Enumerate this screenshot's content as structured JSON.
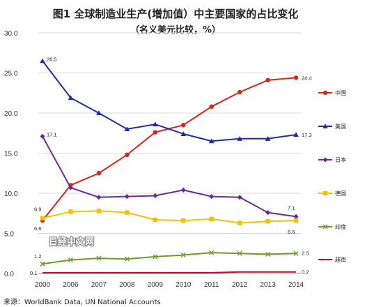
{
  "title": "图1 全球制造业生产(增加值）中主要国家的占比变化",
  "subtitle": "（名义美元比较，%）",
  "source": "来源：WorldBank Data, UN National Accounts",
  "watermark": "日经中文网",
  "chart_data": {
    "type": "line",
    "title": "图1 全球制造业生产(增加值）中主要国家的占比变化",
    "subtitle": "（名义美元比较，%）",
    "x": [
      "2000",
      "2006",
      "2007",
      "2008",
      "2009",
      "2010",
      "2011",
      "2012",
      "2013",
      "2014"
    ],
    "ylim": [
      0,
      30
    ],
    "yticks": [
      "0.0",
      "5.0",
      "10.0",
      "15.0",
      "20.0",
      "25.0",
      "30.0"
    ],
    "grid": true,
    "legend_position": "right",
    "series": [
      {
        "name": "中国",
        "color": "#d7261e",
        "marker": "circle",
        "values": [
          6.6,
          11.0,
          12.5,
          14.8,
          17.6,
          18.5,
          20.8,
          22.6,
          24.1,
          24.4
        ],
        "labels": {
          "0": "6.6",
          "9": "24.4"
        }
      },
      {
        "name": "美国",
        "color": "#1f2d9c",
        "marker": "triangle",
        "values": [
          26.5,
          21.9,
          20.0,
          18.0,
          18.6,
          17.4,
          16.5,
          16.8,
          16.8,
          17.3
        ],
        "labels": {
          "0": "26.5",
          "9": "17.3"
        }
      },
      {
        "name": "日本",
        "color": "#6a2d96",
        "marker": "diamond",
        "values": [
          17.1,
          10.7,
          9.5,
          9.6,
          9.7,
          10.4,
          9.6,
          9.5,
          7.6,
          7.1
        ],
        "labels": {
          "0": "17.1",
          "9": "7.1"
        }
      },
      {
        "name": "德国",
        "color": "#f2c200",
        "marker": "square",
        "values": [
          6.9,
          7.7,
          7.8,
          7.6,
          6.7,
          6.6,
          6.8,
          6.3,
          6.5,
          6.6
        ],
        "labels": {
          "0": "6.9",
          "9": "6.6"
        }
      },
      {
        "name": "印度",
        "color": "#6f9a2a",
        "marker": "x",
        "values": [
          1.2,
          1.7,
          1.9,
          1.8,
          2.1,
          2.3,
          2.6,
          2.5,
          2.4,
          2.5
        ],
        "labels": {
          "0": "1.2",
          "9": "2.5"
        }
      },
      {
        "name": "越南",
        "color": "#b0142e",
        "marker": "none",
        "values": [
          0.1,
          0.1,
          0.1,
          0.1,
          0.1,
          0.1,
          0.1,
          0.2,
          0.2,
          0.2
        ],
        "labels": {
          "0": "0.1",
          "9": "0.2"
        }
      }
    ]
  }
}
